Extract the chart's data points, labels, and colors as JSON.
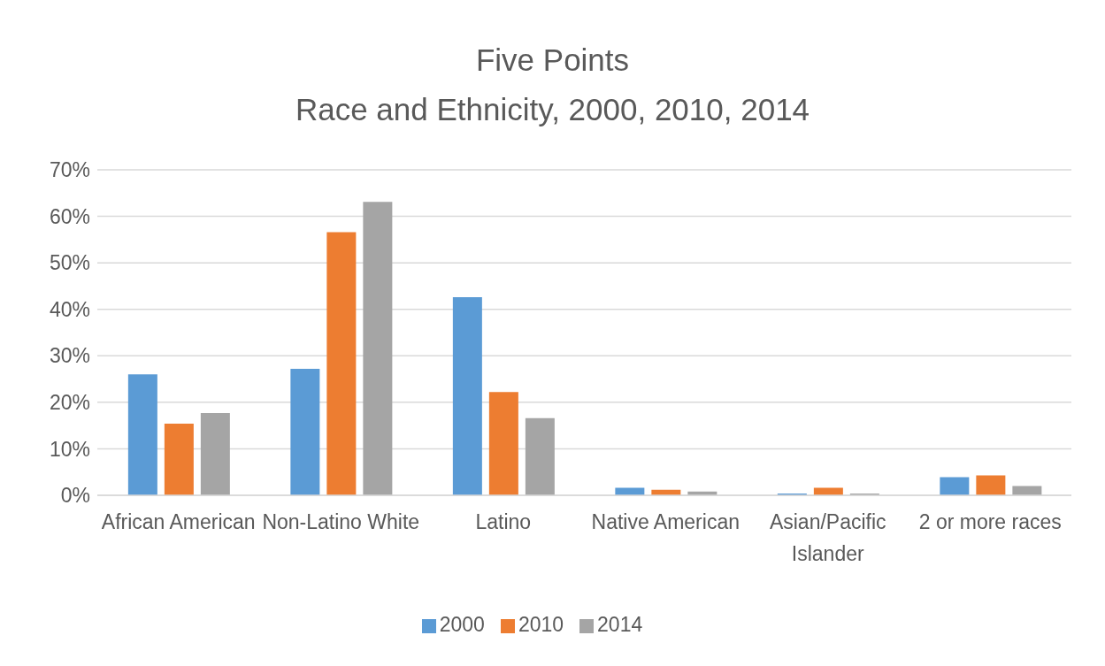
{
  "chart_data": {
    "type": "bar",
    "title": "Five Points",
    "subtitle": "Race and Ethnicity, 2000, 2010, 2014",
    "categories": [
      "African American",
      "Non-Latino White",
      "Latino",
      "Native American",
      "Asian/Pacific Islander",
      "2 or more races"
    ],
    "series": [
      {
        "name": "2000",
        "color": "#5b9bd5",
        "values": [
          26.0,
          27.2,
          42.6,
          1.6,
          0.4,
          3.9
        ]
      },
      {
        "name": "2010",
        "color": "#ed7d31",
        "values": [
          15.4,
          56.6,
          22.2,
          1.2,
          1.6,
          4.3
        ]
      },
      {
        "name": "2014",
        "color": "#a5a5a5",
        "values": [
          17.7,
          63.1,
          16.6,
          0.8,
          0.4,
          2.0
        ]
      }
    ],
    "ylim": [
      0,
      70
    ],
    "yticks": [
      {
        "value": 0,
        "label": "0%"
      },
      {
        "value": 10,
        "label": "10%"
      },
      {
        "value": 20,
        "label": "20%"
      },
      {
        "value": 30,
        "label": "30%"
      },
      {
        "value": 40,
        "label": "40%"
      },
      {
        "value": 50,
        "label": "50%"
      },
      {
        "value": 60,
        "label": "60%"
      },
      {
        "value": 70,
        "label": "70%"
      }
    ],
    "grid": "y",
    "legend": "bottom"
  }
}
